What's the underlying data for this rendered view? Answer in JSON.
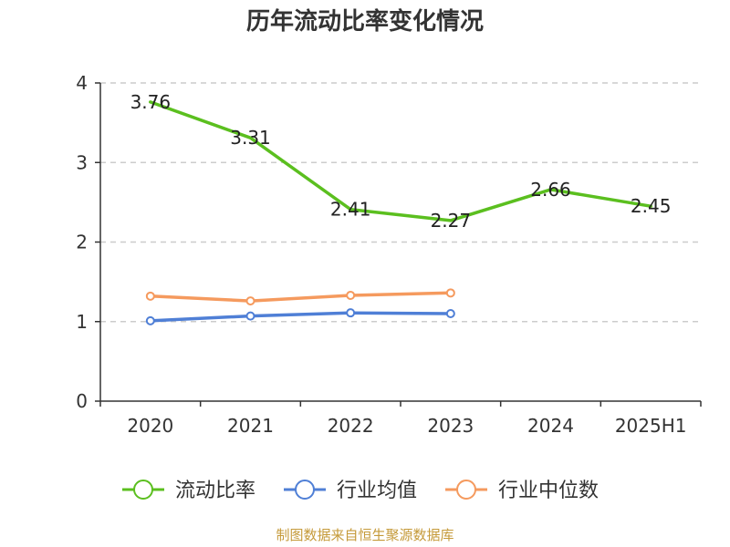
{
  "chart_data": {
    "type": "line",
    "title": "历年流动比率变化情况",
    "categories": [
      "2020",
      "2021",
      "2022",
      "2023",
      "2024",
      "2025H1"
    ],
    "ylim": [
      0,
      4
    ],
    "yticks": [
      "0",
      "1",
      "2",
      "3",
      "4"
    ],
    "grid": true,
    "legend_position": "bottom",
    "series": [
      {
        "name": "流动比率",
        "color": "#5bbf1f",
        "values": [
          3.76,
          3.31,
          2.41,
          2.27,
          2.66,
          2.45
        ],
        "data_labels": [
          "3.76",
          "3.31",
          "2.41",
          "2.27",
          "2.66",
          "2.45"
        ],
        "markers": false
      },
      {
        "name": "行业均值",
        "color": "#4f7fd6",
        "values": [
          1.01,
          1.07,
          1.11,
          1.1,
          null,
          null
        ],
        "markers": true
      },
      {
        "name": "行业中位数",
        "color": "#f59a5e",
        "values": [
          1.32,
          1.26,
          1.33,
          1.36,
          null,
          null
        ],
        "markers": true
      }
    ]
  },
  "source": "制图数据来自恒生聚源数据库"
}
